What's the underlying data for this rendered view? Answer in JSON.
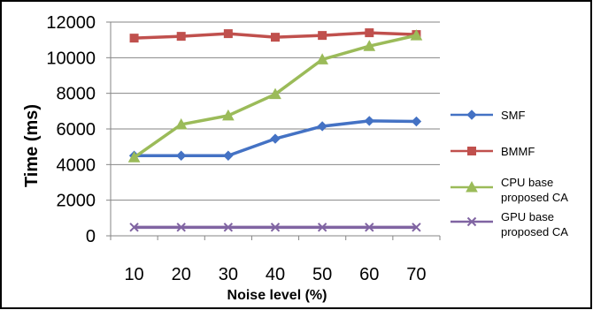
{
  "chart_data": {
    "type": "line",
    "title": "",
    "xlabel": "Noise level (%)",
    "ylabel": "Time (ms)",
    "x": [
      10,
      20,
      30,
      40,
      50,
      60,
      70
    ],
    "ylim": [
      0,
      12000
    ],
    "yticks": [
      0,
      2000,
      4000,
      6000,
      8000,
      10000,
      12000
    ],
    "grid": "horizontal",
    "legend_position": "right",
    "series": [
      {
        "name": "SMF",
        "values": [
          4500,
          4500,
          4500,
          5450,
          6150,
          6450,
          6420
        ],
        "color": "#4472C4",
        "marker": "diamond"
      },
      {
        "name": "BMMF",
        "values": [
          11100,
          11200,
          11350,
          11150,
          11250,
          11400,
          11300
        ],
        "color": "#C0504D",
        "marker": "square"
      },
      {
        "name": "CPU base proposed CA",
        "name_lines": [
          "CPU base",
          "proposed CA"
        ],
        "values": [
          4400,
          6250,
          6750,
          7950,
          9900,
          10650,
          11250
        ],
        "color": "#9BBB59",
        "marker": "triangle"
      },
      {
        "name": "GPU base proposed CA",
        "name_lines": [
          "GPU base",
          "proposed CA"
        ],
        "values": [
          480,
          480,
          480,
          480,
          480,
          480,
          480
        ],
        "color": "#8064A2",
        "marker": "x"
      }
    ]
  }
}
